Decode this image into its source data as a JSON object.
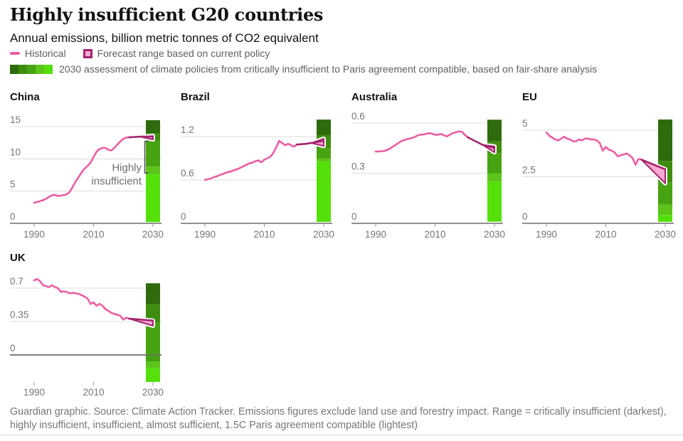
{
  "header": {
    "title": "Highly insufficient G20 countries",
    "subtitle": "Annual emissions, billion metric tonnes of CO2 equivalent"
  },
  "legend": {
    "historical_label": "Historical",
    "forecast_label": "Forecast range based on current policy",
    "assessment_label": "2030 assessment of climate policies from critically insufficient to Paris agreement compatible, based on fair-share analysis"
  },
  "footer": {
    "text": "Guardian graphic. Source: Climate Action Tracker. Emissions figures exclude land use and forestry impact. Range = critically insufficient (darkest), highly insufficient, insufficient, almost sufficient, 1.5C Paris agreement compatible (lightest)"
  },
  "colors": {
    "historical": "#eb5ea2",
    "forecast": "#a3246d",
    "forecast_fill": "#f9a8d2",
    "greens": [
      "#2d6b0c",
      "#3f8d0e",
      "#48a312",
      "#5cc41a",
      "#55e00c"
    ],
    "grid": "#dcdcdc",
    "axis": "#6b6b6b",
    "tick_label": "#767676",
    "annotation": "#6e6e6e",
    "bracket": "#4d4d4d"
  },
  "chart_data": [
    {
      "type": "line",
      "title": "China",
      "ylabel": "billion tonnes CO2e",
      "ylim": [
        0,
        15
      ],
      "zero_y": 156,
      "grid_top_y": 20,
      "ymax_grid": 15,
      "tick_y": 156,
      "xlabel_y": 176,
      "yticks": [
        {
          "v": 0,
          "label": "0",
          "dark": true
        },
        {
          "v": 5,
          "label": "5"
        },
        {
          "v": 10,
          "label": "10"
        },
        {
          "v": 15,
          "label": "15"
        }
      ],
      "xticks": [
        1990,
        2010,
        2030
      ],
      "historical": [
        [
          1990,
          3.2
        ],
        [
          1991,
          3.3
        ],
        [
          1992,
          3.45
        ],
        [
          1993,
          3.6
        ],
        [
          1994,
          3.8
        ],
        [
          1995,
          4.1
        ],
        [
          1996,
          4.35
        ],
        [
          1997,
          4.4
        ],
        [
          1998,
          4.25
        ],
        [
          1999,
          4.3
        ],
        [
          2000,
          4.4
        ],
        [
          2001,
          4.5
        ],
        [
          2002,
          4.9
        ],
        [
          2003,
          5.7
        ],
        [
          2004,
          6.5
        ],
        [
          2005,
          7.2
        ],
        [
          2006,
          7.9
        ],
        [
          2007,
          8.5
        ],
        [
          2008,
          8.9
        ],
        [
          2009,
          9.4
        ],
        [
          2010,
          10.3
        ],
        [
          2011,
          11.1
        ],
        [
          2012,
          11.5
        ],
        [
          2013,
          11.7
        ],
        [
          2014,
          11.7
        ],
        [
          2015,
          11.4
        ],
        [
          2016,
          11.3
        ],
        [
          2017,
          11.7
        ],
        [
          2018,
          12.2
        ],
        [
          2019,
          12.7
        ],
        [
          2020,
          13.1
        ],
        [
          2021,
          13.3
        ],
        [
          2022,
          13.35
        ]
      ],
      "forecast_line": [
        [
          2022,
          13.35
        ],
        [
          2026,
          13.45
        ],
        [
          2030,
          13.45
        ]
      ],
      "wedge": {
        "apex": [
          2026,
          13.4
        ],
        "top_2030": 13.55,
        "bottom_2030": 13.0
      },
      "forecast_2030_range": [
        13.0,
        13.55
      ],
      "bar_segments": [
        {
          "from": 16.0,
          "to": 14.0,
          "c": 0
        },
        {
          "from": 14.0,
          "to": 12.8,
          "c": 1
        },
        {
          "from": 12.8,
          "to": 8.8,
          "c": 2
        },
        {
          "from": 8.8,
          "to": 7.6,
          "c": 3
        },
        {
          "from": 7.6,
          "to": 0.2,
          "c": 4
        }
      ],
      "annotation": {
        "lines": [
          "Highly",
          "insufficient"
        ],
        "bracket_top_v": 12.7,
        "bracket_bottom_v": 7.8
      }
    },
    {
      "type": "line",
      "title": "Brazil",
      "ylabel": "billion tonnes CO2e",
      "ylim": [
        0,
        1.2
      ],
      "zero_y": 156,
      "grid_top_y": 34,
      "ymax_grid": 1.2,
      "tick_y": 156,
      "xlabel_y": 176,
      "yticks": [
        {
          "v": 0,
          "label": "0",
          "dark": true
        },
        {
          "v": 0.6,
          "label": "0.6"
        },
        {
          "v": 1.2,
          "label": "1.2"
        }
      ],
      "xticks": [
        1990,
        2010,
        2030
      ],
      "historical": [
        [
          1990,
          0.6
        ],
        [
          1991,
          0.61
        ],
        [
          1992,
          0.62
        ],
        [
          1993,
          0.64
        ],
        [
          1994,
          0.65
        ],
        [
          1995,
          0.67
        ],
        [
          1996,
          0.68
        ],
        [
          1997,
          0.7
        ],
        [
          1998,
          0.71
        ],
        [
          1999,
          0.72
        ],
        [
          2000,
          0.74
        ],
        [
          2001,
          0.75
        ],
        [
          2002,
          0.77
        ],
        [
          2003,
          0.79
        ],
        [
          2004,
          0.81
        ],
        [
          2005,
          0.83
        ],
        [
          2006,
          0.84
        ],
        [
          2007,
          0.86
        ],
        [
          2008,
          0.87
        ],
        [
          2009,
          0.845
        ],
        [
          2010,
          0.88
        ],
        [
          2011,
          0.9
        ],
        [
          2012,
          0.92
        ],
        [
          2013,
          0.97
        ],
        [
          2014,
          1.05
        ],
        [
          2015,
          1.14
        ],
        [
          2016,
          1.11
        ],
        [
          2017,
          1.08
        ],
        [
          2018,
          1.1
        ],
        [
          2019,
          1.08
        ],
        [
          2020,
          1.06
        ],
        [
          2021,
          1.09
        ]
      ],
      "forecast_line": [
        [
          2021,
          1.09
        ],
        [
          2024,
          1.1
        ],
        [
          2027,
          1.12
        ],
        [
          2030,
          1.14
        ]
      ],
      "wedge": {
        "apex": [
          2026,
          1.11
        ],
        "top_2030": 1.17,
        "bottom_2030": 1.07
      },
      "forecast_2030_range": [
        1.07,
        1.17
      ],
      "bar_segments": [
        {
          "from": 1.435,
          "to": 1.22,
          "c": 0
        },
        {
          "from": 1.22,
          "to": 1.04,
          "c": 1
        },
        {
          "from": 1.04,
          "to": 0.9,
          "c": 2
        },
        {
          "from": 0.9,
          "to": 0.855,
          "c": 3
        },
        {
          "from": 0.855,
          "to": 0.02,
          "c": 4
        }
      ]
    },
    {
      "type": "line",
      "title": "Australia",
      "ylabel": "billion tonnes CO2e",
      "ylim": [
        0,
        0.6
      ],
      "zero_y": 156,
      "grid_top_y": 15,
      "ymax_grid": 0.6,
      "tick_y": 156,
      "xlabel_y": 176,
      "yticks": [
        {
          "v": 0,
          "label": "0",
          "dark": true
        },
        {
          "v": 0.3,
          "label": "0.3"
        },
        {
          "v": 0.6,
          "label": "0.6"
        }
      ],
      "xticks": [
        1990,
        2010,
        2030
      ],
      "historical": [
        [
          1990,
          0.43
        ],
        [
          1991,
          0.43
        ],
        [
          1992,
          0.432
        ],
        [
          1993,
          0.433
        ],
        [
          1994,
          0.44
        ],
        [
          1995,
          0.45
        ],
        [
          1996,
          0.462
        ],
        [
          1997,
          0.472
        ],
        [
          1998,
          0.485
        ],
        [
          1999,
          0.495
        ],
        [
          2000,
          0.5
        ],
        [
          2001,
          0.505
        ],
        [
          2002,
          0.51
        ],
        [
          2003,
          0.515
        ],
        [
          2004,
          0.525
        ],
        [
          2005,
          0.53
        ],
        [
          2006,
          0.532
        ],
        [
          2007,
          0.535
        ],
        [
          2008,
          0.54
        ],
        [
          2009,
          0.536
        ],
        [
          2010,
          0.53
        ],
        [
          2011,
          0.53
        ],
        [
          2012,
          0.535
        ],
        [
          2013,
          0.527
        ],
        [
          2014,
          0.52
        ],
        [
          2015,
          0.53
        ],
        [
          2016,
          0.54
        ],
        [
          2017,
          0.545
        ],
        [
          2018,
          0.55
        ],
        [
          2019,
          0.548
        ],
        [
          2020,
          0.53
        ],
        [
          2021,
          0.515
        ]
      ],
      "forecast_line": [
        [
          2021,
          0.515
        ],
        [
          2026,
          0.47
        ],
        [
          2030,
          0.45
        ]
      ],
      "wedge": {
        "apex": [
          2026,
          0.47
        ],
        "top_2030": 0.46,
        "bottom_2030": 0.425
      },
      "forecast_2030_range": [
        0.425,
        0.46
      ],
      "bar_segments": [
        {
          "from": 0.62,
          "to": 0.49,
          "c": 0
        },
        {
          "from": 0.49,
          "to": 0.42,
          "c": 1
        },
        {
          "from": 0.42,
          "to": 0.3,
          "c": 2
        },
        {
          "from": 0.3,
          "to": 0.25,
          "c": 3
        },
        {
          "from": 0.25,
          "to": 0.01,
          "c": 4
        }
      ]
    },
    {
      "type": "line",
      "title": "EU",
      "ylabel": "billion tonnes CO2e",
      "ylim": [
        0,
        5
      ],
      "zero_y": 156,
      "grid_top_y": 25,
      "ymax_grid": 5,
      "tick_y": 156,
      "xlabel_y": 176,
      "yticks": [
        {
          "v": 0,
          "label": "0",
          "dark": true
        },
        {
          "v": 2.5,
          "label": "2.5"
        },
        {
          "v": 5,
          "label": "5"
        }
      ],
      "xticks": [
        1990,
        2010,
        2030
      ],
      "historical": [
        [
          1990,
          4.87
        ],
        [
          1991,
          4.7
        ],
        [
          1992,
          4.6
        ],
        [
          1993,
          4.5
        ],
        [
          1994,
          4.45
        ],
        [
          1995,
          4.55
        ],
        [
          1996,
          4.65
        ],
        [
          1997,
          4.55
        ],
        [
          1998,
          4.5
        ],
        [
          1999,
          4.4
        ],
        [
          2000,
          4.4
        ],
        [
          2001,
          4.5
        ],
        [
          2002,
          4.45
        ],
        [
          2003,
          4.55
        ],
        [
          2004,
          4.55
        ],
        [
          2005,
          4.5
        ],
        [
          2006,
          4.5
        ],
        [
          2007,
          4.45
        ],
        [
          2008,
          4.3
        ],
        [
          2009,
          3.9
        ],
        [
          2010,
          4.1
        ],
        [
          2011,
          3.95
        ],
        [
          2012,
          3.9
        ],
        [
          2013,
          3.8
        ],
        [
          2014,
          3.6
        ],
        [
          2015,
          3.65
        ],
        [
          2016,
          3.7
        ],
        [
          2017,
          3.75
        ],
        [
          2018,
          3.65
        ],
        [
          2019,
          3.5
        ],
        [
          2020,
          3.15
        ],
        [
          2021,
          3.45
        ],
        [
          2022,
          3.42
        ]
      ],
      "forecast_line": [
        [
          2022,
          3.42
        ],
        [
          2030,
          2.9
        ]
      ],
      "wedge": {
        "apex": [
          2022,
          3.42
        ],
        "top_2030": 2.9,
        "bottom_2030": 2.15
      },
      "forecast_2030_range": [
        2.15,
        2.9
      ],
      "bar_segments": [
        {
          "from": 5.57,
          "to": 3.35,
          "c": 0
        },
        {
          "from": 3.35,
          "to": 2.2,
          "c": 1
        },
        {
          "from": 2.2,
          "to": 1.0,
          "c": 2
        },
        {
          "from": 1.0,
          "to": 0.45,
          "c": 3
        },
        {
          "from": 0.45,
          "to": 0.08,
          "c": 4
        }
      ]
    },
    {
      "type": "line",
      "title": "UK",
      "ylabel": "billion tonnes CO2e",
      "ylim": [
        -0.3,
        0.8
      ],
      "uk": true,
      "zero_y": 115,
      "grid_top_y": 21,
      "ymax_grid": 0.7,
      "tick_y": 153,
      "xlabel_y": 172,
      "yticks": [
        {
          "v": 0,
          "label": "0",
          "dark": true
        },
        {
          "v": 0.35,
          "label": "0.35"
        },
        {
          "v": 0.7,
          "label": "0.7"
        }
      ],
      "xticks": [
        1990,
        2010,
        2030
      ],
      "historical": [
        [
          1990,
          0.78
        ],
        [
          1991,
          0.795
        ],
        [
          1992,
          0.77
        ],
        [
          1993,
          0.73
        ],
        [
          1994,
          0.72
        ],
        [
          1995,
          0.71
        ],
        [
          1996,
          0.73
        ],
        [
          1997,
          0.71
        ],
        [
          1998,
          0.7
        ],
        [
          1999,
          0.66
        ],
        [
          2000,
          0.665
        ],
        [
          2001,
          0.66
        ],
        [
          2002,
          0.645
        ],
        [
          2003,
          0.65
        ],
        [
          2004,
          0.645
        ],
        [
          2005,
          0.64
        ],
        [
          2006,
          0.625
        ],
        [
          2007,
          0.61
        ],
        [
          2008,
          0.59
        ],
        [
          2009,
          0.535
        ],
        [
          2010,
          0.55
        ],
        [
          2011,
          0.515
        ],
        [
          2012,
          0.535
        ],
        [
          2013,
          0.515
        ],
        [
          2014,
          0.48
        ],
        [
          2015,
          0.46
        ],
        [
          2016,
          0.44
        ],
        [
          2017,
          0.43
        ],
        [
          2018,
          0.42
        ],
        [
          2019,
          0.41
        ],
        [
          2020,
          0.37
        ],
        [
          2021,
          0.39
        ],
        [
          2022,
          0.38
        ]
      ],
      "forecast_line": [
        [
          2022,
          0.38
        ],
        [
          2030,
          0.36
        ]
      ],
      "wedge": {
        "apex": [
          2022,
          0.38
        ],
        "top_2030": 0.36,
        "bottom_2030": 0.305
      },
      "forecast_2030_range": [
        0.305,
        0.36
      ],
      "bar_segments": [
        {
          "from": 0.75,
          "to": 0.53,
          "c": 0
        },
        {
          "from": 0.53,
          "to": 0.34,
          "c": 1
        },
        {
          "from": 0.34,
          "to": -0.07,
          "c": 2
        },
        {
          "from": -0.07,
          "to": -0.14,
          "c": 3
        },
        {
          "from": -0.14,
          "to": -0.283,
          "c": 4
        }
      ]
    }
  ]
}
